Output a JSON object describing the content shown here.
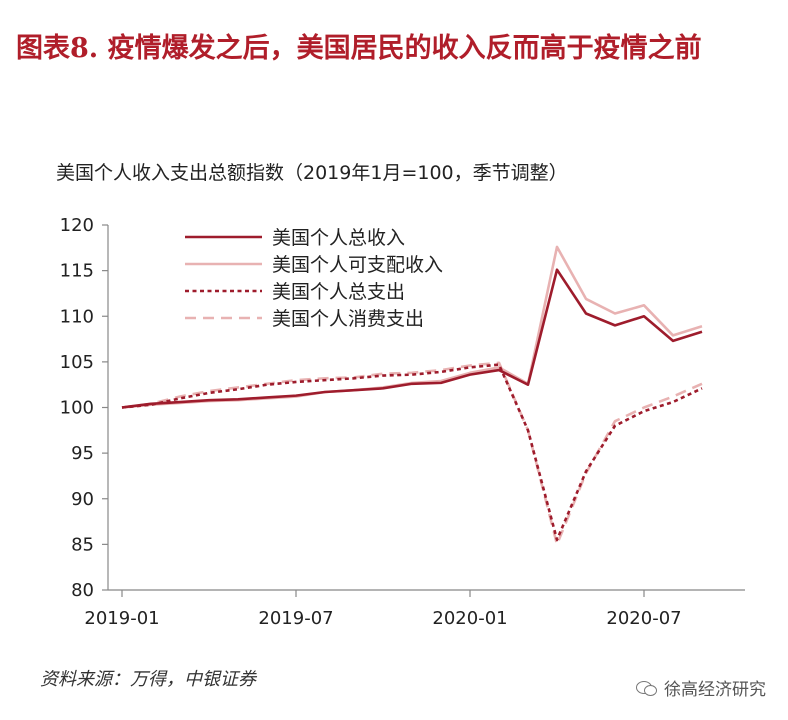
{
  "header": {
    "title": "图表8. 疫情爆发之后，美国居民的收入反而高于疫情之前",
    "subtitle": "美国个人收入支出总额指数（2019年1月=100，季节调整）"
  },
  "footer": {
    "source": "资料来源：万得，中银证券",
    "watermark": "徐高经济研究",
    "watermark_icon": "wechat-icon"
  },
  "chart_data": {
    "type": "line",
    "x": [
      "2019-01",
      "2019-02",
      "2019-03",
      "2019-04",
      "2019-05",
      "2019-06",
      "2019-07",
      "2019-08",
      "2019-09",
      "2019-10",
      "2019-11",
      "2019-12",
      "2020-01",
      "2020-02",
      "2020-03",
      "2020-04",
      "2020-05",
      "2020-06",
      "2020-07",
      "2020-08",
      "2020-09"
    ],
    "xticks": [
      "2019-01",
      "2019-07",
      "2020-01",
      "2020-07"
    ],
    "ylim": [
      80,
      120
    ],
    "yticks": [
      80,
      85,
      90,
      95,
      100,
      105,
      110,
      115,
      120
    ],
    "grid": false,
    "legend_position": "top-left",
    "series": [
      {
        "name": "美国个人总收入",
        "color": "#9e1c2c",
        "dash": "solid",
        "values": [
          100,
          100.4,
          100.6,
          100.8,
          100.9,
          101.1,
          101.3,
          101.7,
          101.9,
          102.1,
          102.6,
          102.7,
          103.6,
          104.1,
          102.5,
          115.1,
          110.3,
          109.0,
          110.0,
          107.3,
          108.3
        ]
      },
      {
        "name": "美国个人可支配收入",
        "color": "#e8b2b2",
        "dash": "solid",
        "values": [
          100,
          100.3,
          100.5,
          100.7,
          100.8,
          101.0,
          101.2,
          101.7,
          101.9,
          102.2,
          102.7,
          102.9,
          103.8,
          104.4,
          102.6,
          117.6,
          111.9,
          110.3,
          111.2,
          107.9,
          108.9
        ]
      },
      {
        "name": "美国个人总支出",
        "color": "#9e1c2c",
        "dash": "dotted",
        "values": [
          100,
          100.3,
          101.0,
          101.6,
          102.0,
          102.5,
          102.8,
          103.0,
          103.2,
          103.5,
          103.6,
          103.9,
          104.4,
          104.7,
          97.5,
          85.5,
          93.0,
          98.0,
          99.6,
          100.6,
          102.1
        ]
      },
      {
        "name": "美国个人消费支出",
        "color": "#e8b2b2",
        "dash": "dashed",
        "values": [
          100,
          100.4,
          101.2,
          101.8,
          102.2,
          102.6,
          103.0,
          103.2,
          103.3,
          103.7,
          103.8,
          104.1,
          104.6,
          104.9,
          97.5,
          85.0,
          92.8,
          98.5,
          100.0,
          101.2,
          102.6
        ]
      }
    ]
  }
}
